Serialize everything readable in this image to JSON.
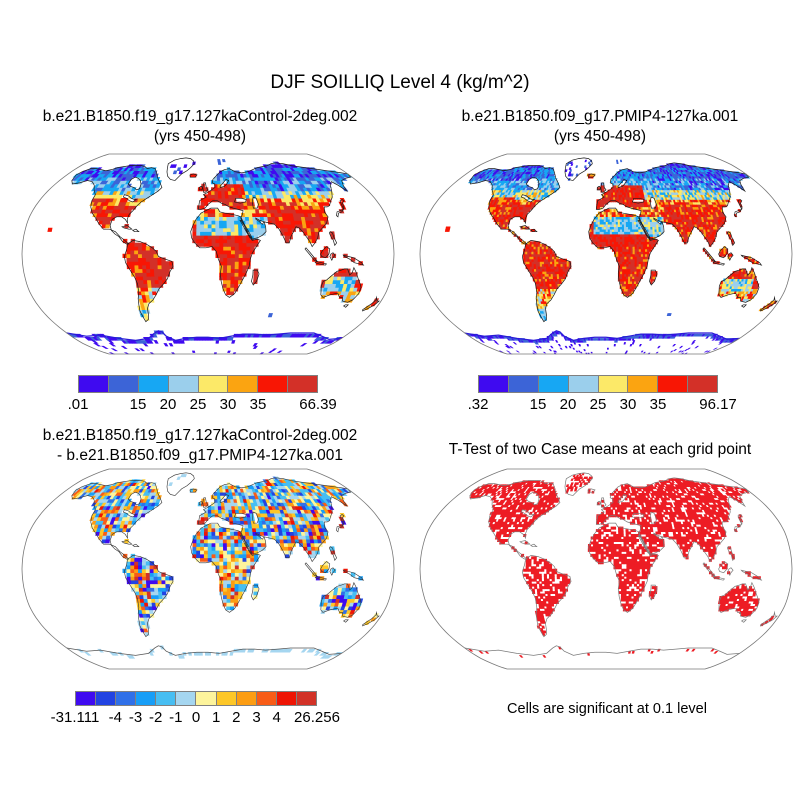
{
  "main_title": "DJF SOILLIQ Level 4 (kg/m^2)",
  "panels": {
    "control": {
      "title": "b.e21.B1850.f19_g17.127kaControl-2deg.002",
      "subtitle": "(yrs 450-498)",
      "colorbar": {
        "colors": [
          "#3f0af0",
          "#3c64d7",
          "#17a7f3",
          "#9bcfec",
          "#fce968",
          "#fba411",
          "#f81604",
          "#d33028"
        ],
        "ticks": [
          {
            "label": ".01",
            "at": 0
          },
          {
            "label": "15",
            "at": 2
          },
          {
            "label": "20",
            "at": 3
          },
          {
            "label": "25",
            "at": 4
          },
          {
            "label": "30",
            "at": 5
          },
          {
            "label": "35",
            "at": 6
          },
          {
            "label": "66.39",
            "at": 8
          }
        ]
      }
    },
    "pmip4": {
      "title": "b.e21.B1850.f09_g17.PMIP4-127ka.001",
      "subtitle": "(yrs 450-498)",
      "colorbar": {
        "colors": [
          "#3f0af0",
          "#3c64d7",
          "#17a7f3",
          "#9bcfec",
          "#fce968",
          "#fba411",
          "#f81604",
          "#d33028"
        ],
        "ticks": [
          {
            "label": ".32",
            "at": 0
          },
          {
            "label": "15",
            "at": 2
          },
          {
            "label": "20",
            "at": 3
          },
          {
            "label": "25",
            "at": 4
          },
          {
            "label": "30",
            "at": 5
          },
          {
            "label": "35",
            "at": 6
          },
          {
            "label": "96.17",
            "at": 8
          }
        ]
      }
    },
    "difference": {
      "title_line1": "b.e21.B1850.f19_g17.127kaControl-2deg.002",
      "title_line2": "- b.e21.B1850.f09_g17.PMIP4-127ka.001",
      "colorbar": {
        "colors": [
          "#3f0af0",
          "#2243e2",
          "#3070e8",
          "#189ef7",
          "#47bef2",
          "#a5d6f0",
          "#fdf49c",
          "#fdc728",
          "#fc9d13",
          "#f85c17",
          "#ee1504",
          "#d23227"
        ],
        "ticks": [
          {
            "label": "-31.111",
            "at": 0
          },
          {
            "label": "-4",
            "at": 2
          },
          {
            "label": "-3",
            "at": 3
          },
          {
            "label": "-2",
            "at": 4
          },
          {
            "label": "-1",
            "at": 5
          },
          {
            "label": "0",
            "at": 6
          },
          {
            "label": "1",
            "at": 7
          },
          {
            "label": "2",
            "at": 8
          },
          {
            "label": "3",
            "at": 9
          },
          {
            "label": "4",
            "at": 10
          },
          {
            "label": "26.256",
            "at": 12
          }
        ]
      }
    },
    "ttest": {
      "title": "T-Test of two Case means at each grid point",
      "caption": "Cells are significant at 0.1 level",
      "significant_color": "#ed1c24"
    }
  },
  "chart_data": {
    "type": "heatmap",
    "subtype": "global-filled-grid-maps",
    "projection": "robinson",
    "season": "DJF",
    "variable": "SOILLIQ Level 4 (kg/m^2)",
    "legend_position": "below-each-map",
    "panels": [
      {
        "name": "b.e21.B1850.f19_g17.127kaControl-2deg.002",
        "years": "450-498",
        "min": 0.01,
        "max": 66.39,
        "tick_values": [
          15,
          20,
          25,
          30,
          35
        ]
      },
      {
        "name": "b.e21.B1850.f09_g17.PMIP4-127ka.001",
        "years": "450-498",
        "min": 0.32,
        "max": 96.17,
        "tick_values": [
          15,
          20,
          25,
          30,
          35
        ]
      },
      {
        "name": "b.e21.B1850.f19_g17.127kaControl-2deg.002 - b.e21.B1850.f09_g17.PMIP4-127ka.001",
        "min": -31.111,
        "max": 26.256,
        "tick_values": [
          -4,
          -3,
          -2,
          -1,
          0,
          1,
          2,
          3,
          4
        ]
      },
      {
        "name": "T-Test of two Case means at each grid point",
        "significance_level": 0.1
      }
    ]
  }
}
